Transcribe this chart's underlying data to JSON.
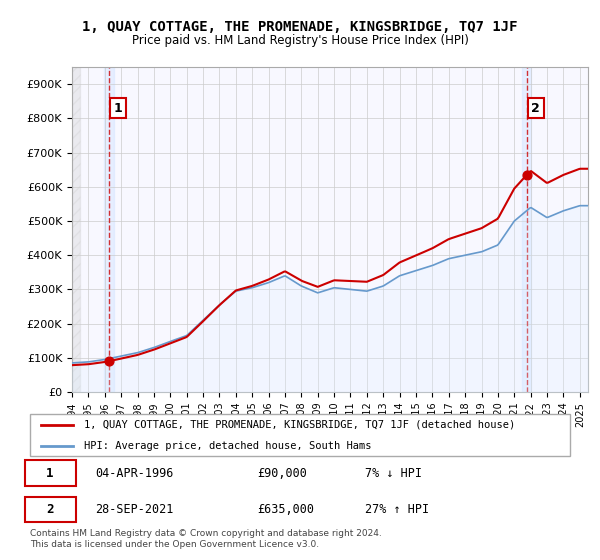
{
  "title": "1, QUAY COTTAGE, THE PROMENADE, KINGSBRIDGE, TQ7 1JF",
  "subtitle": "Price paid vs. HM Land Registry's House Price Index (HPI)",
  "ylabel": "",
  "ylim": [
    0,
    950000
  ],
  "yticks": [
    0,
    100000,
    200000,
    300000,
    400000,
    500000,
    600000,
    700000,
    800000,
    900000
  ],
  "ytick_labels": [
    "£0",
    "£100K",
    "£200K",
    "£300K",
    "£400K",
    "£500K",
    "£600K",
    "£700K",
    "£800K",
    "£900K"
  ],
  "xlim_start": 1994.0,
  "xlim_end": 2025.5,
  "sale1_year": 1996.25,
  "sale1_price": 90000,
  "sale2_year": 2021.75,
  "sale2_price": 635000,
  "property_line_color": "#cc0000",
  "hpi_line_color": "#6699cc",
  "hpi_fill_color": "#ddeeff",
  "sale_dot_color": "#cc0000",
  "annotation1_label": "1",
  "annotation2_label": "2",
  "annotation1_box_color": "#ffffff",
  "annotation1_box_edgecolor": "#cc0000",
  "legend_property": "1, QUAY COTTAGE, THE PROMENADE, KINGSBRIDGE, TQ7 1JF (detached house)",
  "legend_hpi": "HPI: Average price, detached house, South Hams",
  "table_row1": [
    "1",
    "04-APR-1996",
    "£90,000",
    "7% ↓ HPI"
  ],
  "table_row2": [
    "2",
    "28-SEP-2021",
    "£635,000",
    "27% ↑ HPI"
  ],
  "footnote": "Contains HM Land Registry data © Crown copyright and database right 2024.\nThis data is licensed under the Open Government Licence v3.0.",
  "background_hatch_color": "#e0e0e0",
  "grid_color": "#cccccc",
  "plot_bg_color": "#f8f8ff"
}
